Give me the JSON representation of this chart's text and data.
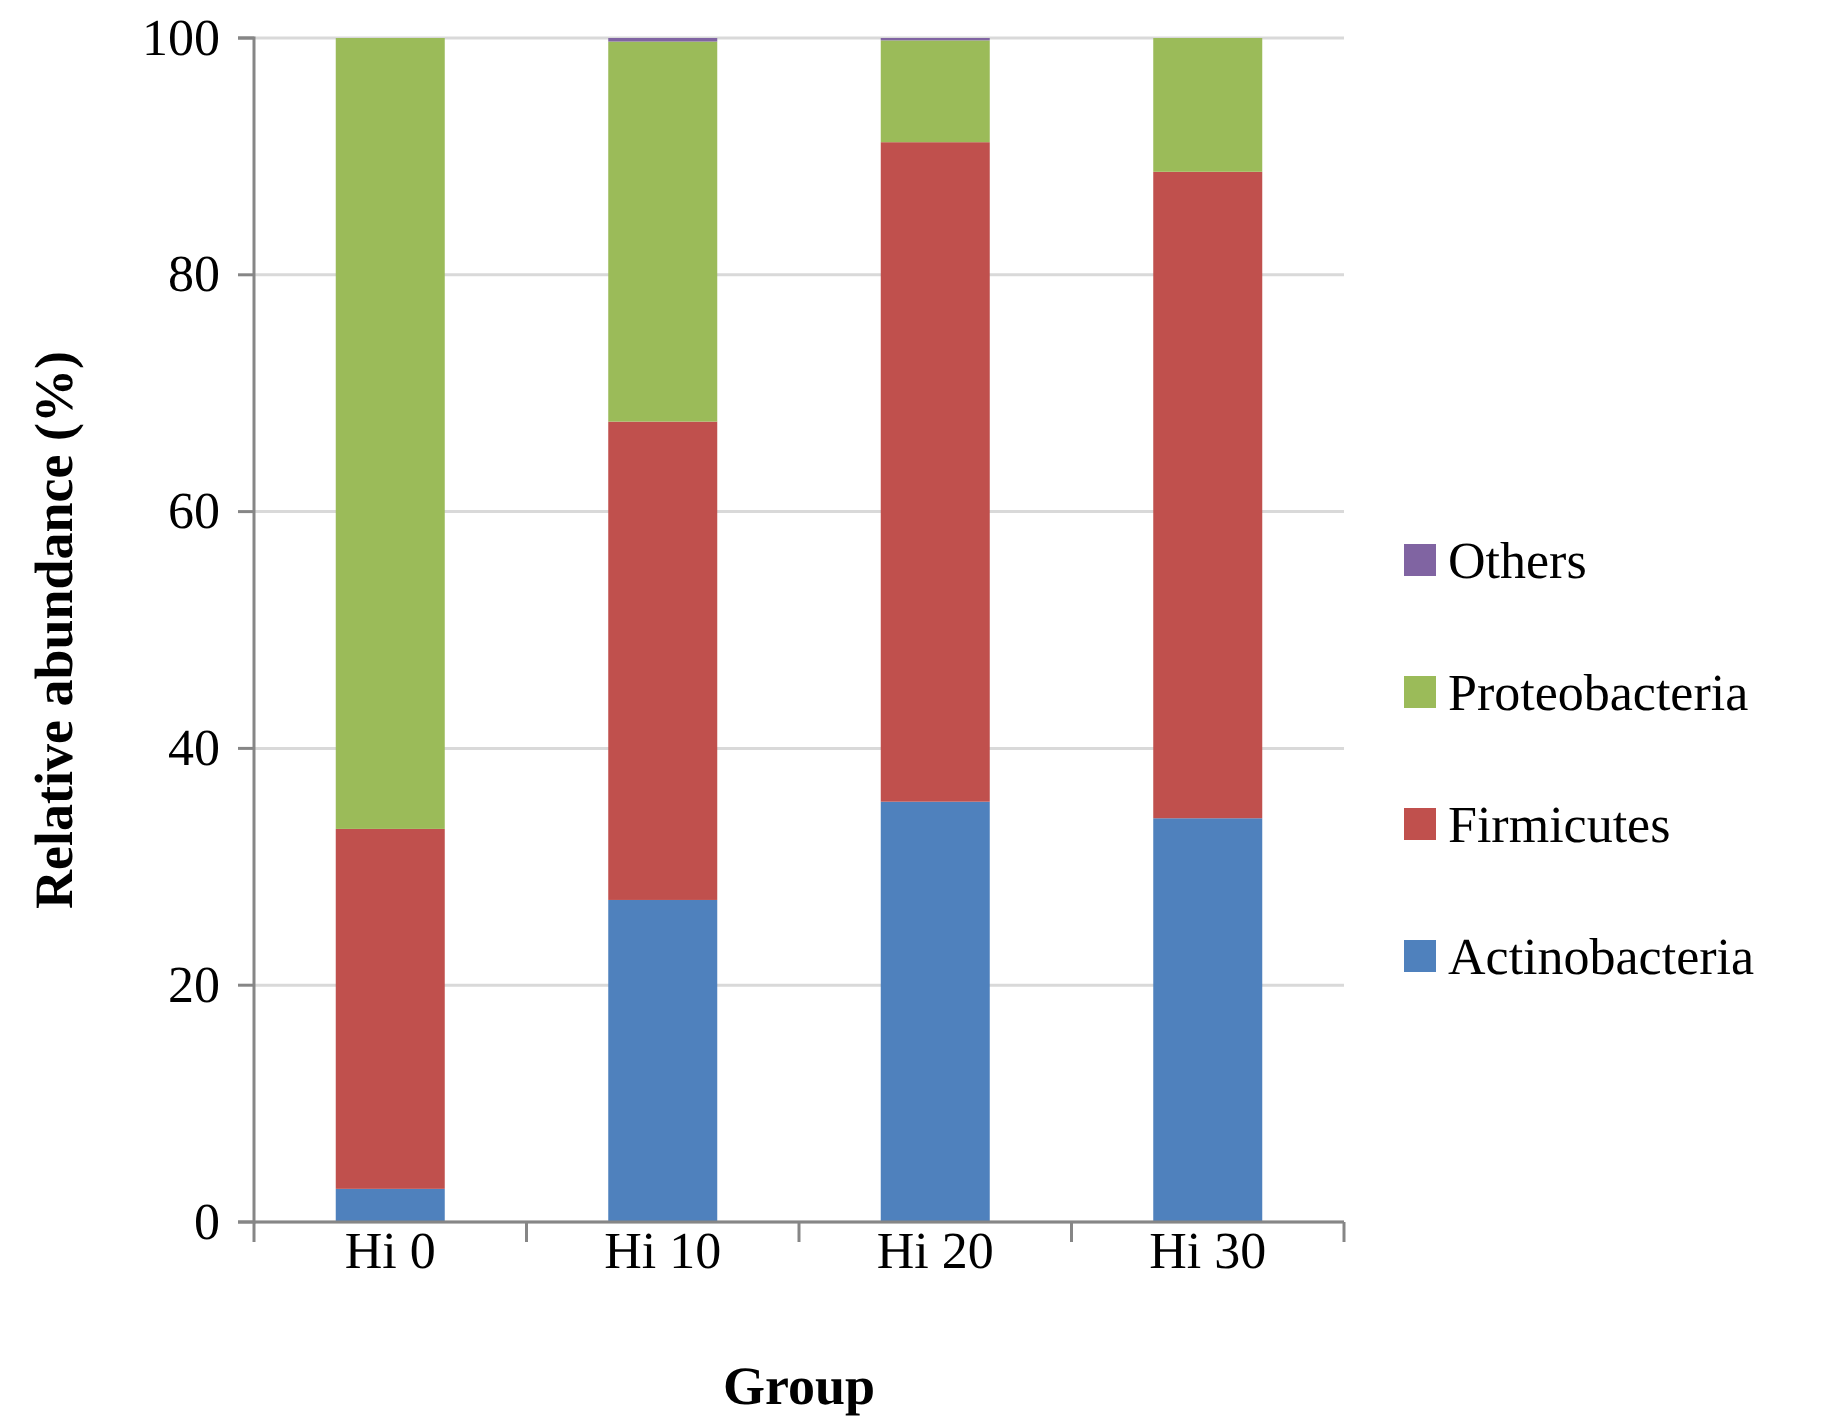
{
  "chart_data": {
    "type": "bar",
    "stacked": true,
    "xlabel": "Group",
    "ylabel": "Relative abundance (%)",
    "categories": [
      "Hi 0",
      "Hi 10",
      "Hi 20",
      "Hi 30"
    ],
    "series": [
      {
        "name": "Actinobacteria",
        "color": "#4f81bd",
        "values": [
          2.8,
          27.2,
          35.5,
          34.1
        ]
      },
      {
        "name": "Firmicutes",
        "color": "#c0504d",
        "values": [
          30.4,
          40.4,
          55.7,
          54.6
        ]
      },
      {
        "name": "Proteobacteria",
        "color": "#9bbb59",
        "values": [
          66.8,
          32.1,
          8.6,
          11.3
        ]
      },
      {
        "name": "Others",
        "color": "#8064a2",
        "values": [
          0,
          0.3,
          0.2,
          0
        ]
      }
    ],
    "ylim": [
      0,
      100
    ],
    "yticks": [
      0,
      20,
      40,
      60,
      80,
      100
    ],
    "grid": "y",
    "legend": "right"
  }
}
